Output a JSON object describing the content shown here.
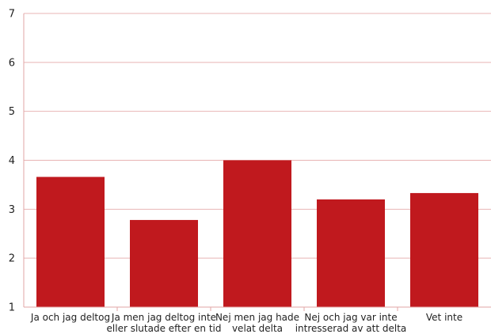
{
  "chart_data": {
    "type": "bar",
    "categories": [
      [
        "Ja och jag deltog"
      ],
      [
        "Ja men jag deltog inte",
        "eller slutade efter en tid"
      ],
      [
        "Nej men jag hade",
        "velat delta"
      ],
      [
        "Nej och jag var inte",
        "intresserad av att delta"
      ],
      [
        "Vet inte"
      ]
    ],
    "values": [
      3.66,
      2.78,
      4.0,
      3.2,
      3.33
    ],
    "ylim": [
      1,
      7
    ],
    "yticks": [
      "1",
      "2",
      "3",
      "4",
      "5",
      "6",
      "7"
    ],
    "grid": true,
    "bar_color": "#c0191e",
    "grid_color": "#e8b4b4",
    "axis_color": "#e2a6a6"
  }
}
